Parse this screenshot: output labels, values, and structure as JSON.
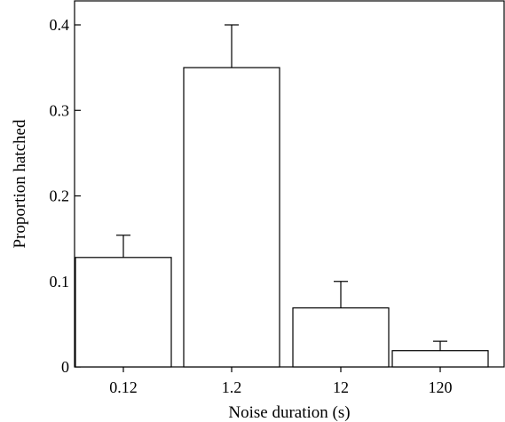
{
  "chart_data": {
    "type": "bar",
    "categories": [
      "0.12",
      "1.2",
      "12",
      "120"
    ],
    "values": [
      0.128,
      0.35,
      0.069,
      0.019
    ],
    "error_upper": [
      0.154,
      0.4,
      0.1,
      0.03
    ],
    "xlabel": "Noise duration (s)",
    "ylabel": "Proportion hatched",
    "ylim": [
      0,
      0.42
    ],
    "yticks": [
      0,
      0.1,
      0.2,
      0.3,
      0.4
    ],
    "ytick_labels": [
      "0",
      "0.1",
      "0.2",
      "0.3",
      "0.4"
    ],
    "grid": false,
    "legend": "none",
    "colors": {
      "bar_fill": "#ffffff",
      "stroke": "#000000"
    }
  }
}
